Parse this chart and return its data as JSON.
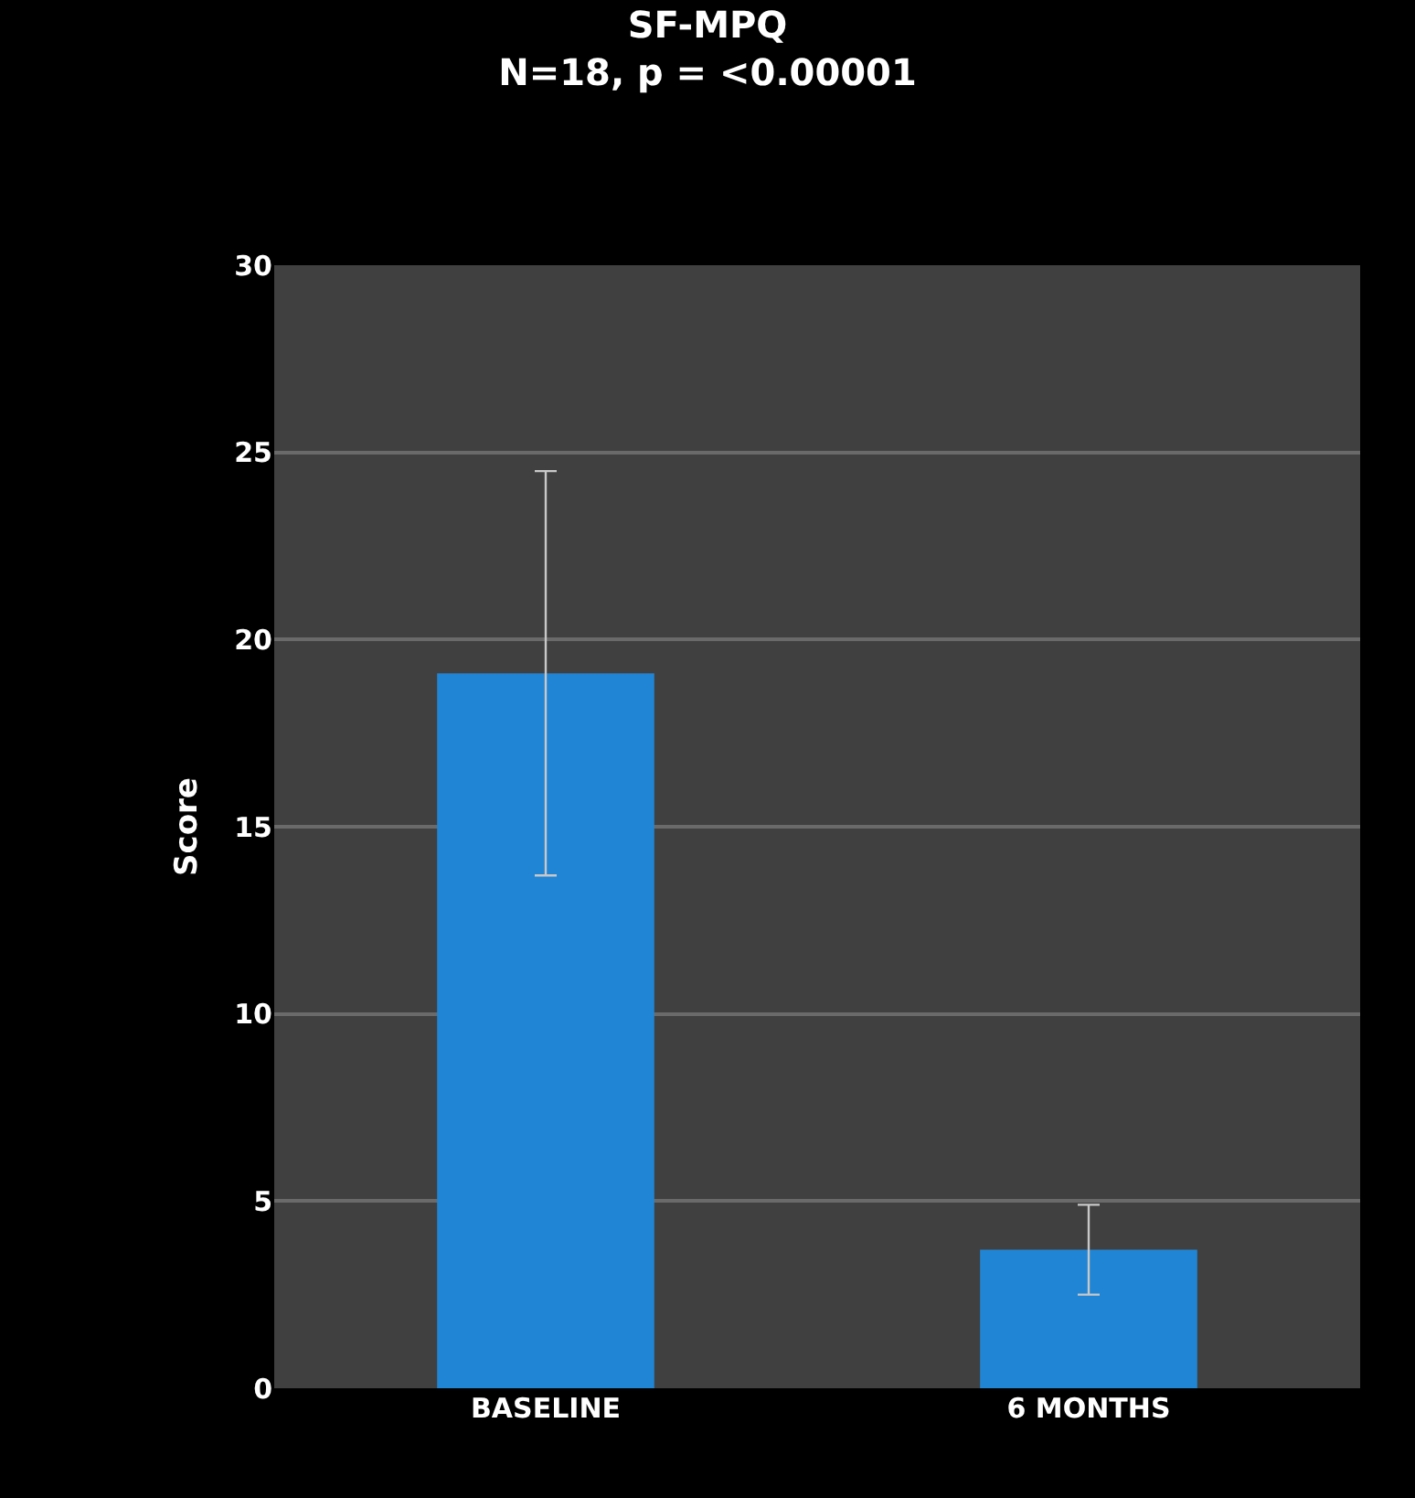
{
  "chart_data": {
    "type": "bar",
    "title": "SF-MPQ",
    "subtitle": "N=18, p = <0.00001",
    "ylabel": "Score",
    "categories": [
      "BASELINE",
      "6 MONTHS"
    ],
    "values": [
      19.1,
      3.7
    ],
    "errors": [
      5.4,
      1.2
    ],
    "color": "#2185d5",
    "ylim": [
      0,
      30
    ],
    "yticks": [
      0,
      5,
      10,
      15,
      20,
      25,
      30
    ],
    "grid": "y",
    "legend": false
  }
}
